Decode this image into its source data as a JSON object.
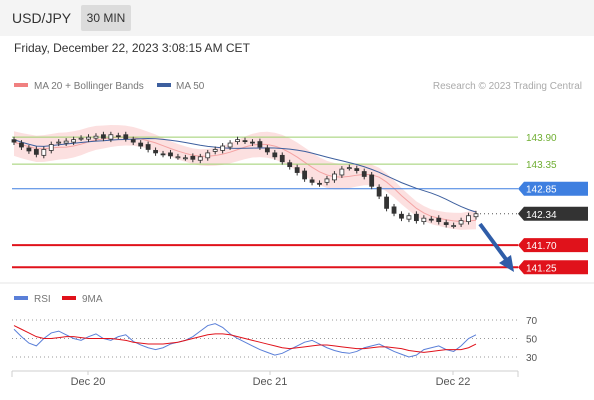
{
  "header": {
    "pair": "USD/JPY",
    "timeframe": "30 MIN"
  },
  "datetime": "Friday, December 22, 2023 3:08:15 AM CET",
  "legend": {
    "ma20_bb": "MA 20 + Bollinger Bands",
    "ma50": "MA 50",
    "credit": "Research © 2023 Trading Central",
    "rsi": "RSI",
    "ma9": "9MA"
  },
  "colors": {
    "ma20": "#f08080",
    "ma50": "#3d5f9e",
    "resistance": "#9ecf6e",
    "pivot": "#3e7fe0",
    "support": "#e0121b",
    "current": "#333333",
    "bull_candle": "#ffffff",
    "bear_candle": "#333333",
    "rsi": "#5a7fd8",
    "rsi_ma": "#e0121b",
    "arrow": "#2f5da8"
  },
  "chart_data": {
    "type": "candlestick",
    "x_labels": [
      "Dec 20",
      "Dec 21",
      "Dec 22"
    ],
    "y_range": [
      140.95,
      144.25
    ],
    "levels": [
      {
        "value": 143.9,
        "label": "143.90",
        "kind": "resistance"
      },
      {
        "value": 143.35,
        "label": "143.35",
        "kind": "resistance"
      },
      {
        "value": 142.85,
        "label": "142.85",
        "kind": "pivot"
      },
      {
        "value": 142.34,
        "label": "142.34",
        "kind": "current"
      },
      {
        "value": 141.7,
        "label": "141.70",
        "kind": "support"
      },
      {
        "value": 141.25,
        "label": "141.25",
        "kind": "support"
      }
    ],
    "price_close": [
      143.8,
      143.7,
      143.62,
      143.55,
      143.65,
      143.75,
      143.8,
      143.82,
      143.85,
      143.88,
      143.9,
      143.92,
      143.88,
      143.95,
      143.92,
      143.87,
      143.8,
      143.72,
      143.65,
      143.58,
      143.55,
      143.52,
      143.5,
      143.48,
      143.45,
      143.5,
      143.58,
      143.65,
      143.72,
      143.78,
      143.85,
      143.82,
      143.78,
      143.7,
      143.6,
      143.5,
      143.4,
      143.3,
      143.18,
      143.05,
      142.98,
      142.95,
      143.05,
      143.15,
      143.25,
      143.28,
      143.22,
      143.1,
      142.9,
      142.7,
      142.45,
      142.35,
      142.25,
      142.3,
      142.2,
      142.25,
      142.22,
      142.18,
      142.12,
      142.1,
      142.2,
      142.3,
      142.34
    ],
    "rsi": {
      "levels": [
        70,
        50,
        30
      ],
      "rsi_values": [
        60,
        52,
        45,
        42,
        50,
        56,
        58,
        54,
        50,
        48,
        52,
        55,
        50,
        48,
        52,
        54,
        47,
        43,
        40,
        38,
        40,
        44,
        46,
        48,
        52,
        58,
        64,
        66,
        62,
        55,
        50,
        46,
        42,
        38,
        35,
        32,
        34,
        38,
        42,
        46,
        48,
        44,
        40,
        37,
        35,
        34,
        36,
        40,
        42,
        44,
        40,
        36,
        33,
        30,
        32,
        38,
        40,
        42,
        38,
        36,
        42,
        50,
        54
      ],
      "ma9_values": [
        64,
        60,
        56,
        52,
        50,
        50,
        51,
        52,
        52,
        51,
        50,
        50,
        50,
        50,
        49,
        48,
        46,
        45,
        44,
        44,
        44,
        45,
        46,
        48,
        50,
        52,
        54,
        55,
        55,
        54,
        52,
        50,
        48,
        46,
        44,
        42,
        40,
        39,
        40,
        41,
        42,
        43,
        43,
        42,
        41,
        40,
        39,
        39,
        40,
        41,
        41,
        40,
        39,
        37,
        36,
        35,
        36,
        37,
        38,
        38,
        38,
        40,
        44
      ]
    }
  }
}
